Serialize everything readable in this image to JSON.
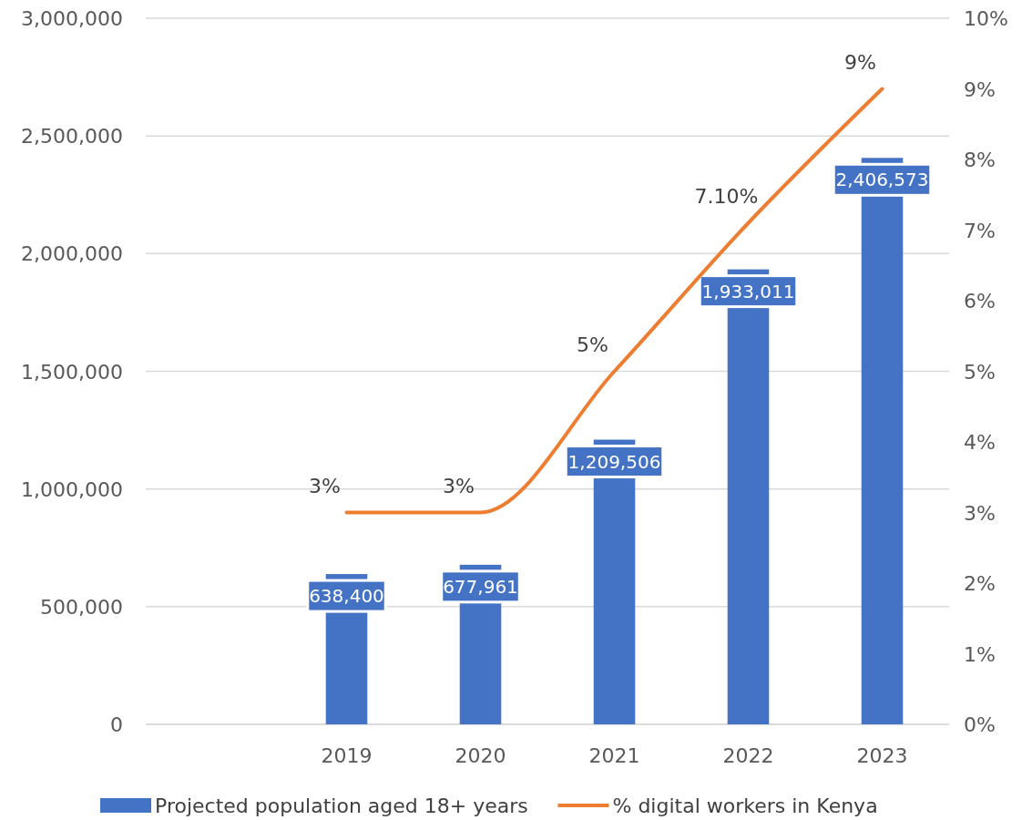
{
  "chart_data": {
    "type": "bar",
    "categories": [
      null,
      "2019",
      "2020",
      "2021",
      "2022",
      "2023"
    ],
    "series": [
      {
        "name": "Projected population aged 18+ years",
        "color": "#4472c4",
        "values": [
          null,
          638400,
          677961,
          1209506,
          1933011,
          2406573
        ],
        "value_labels": [
          null,
          "638,400",
          "677,961",
          "1,209,506",
          "1,933,011",
          "2,406,573"
        ]
      },
      {
        "name": "% digital workers in Kenya",
        "type": "line",
        "axis": "y2",
        "color": "#ed7d31",
        "values": [
          null,
          3,
          3,
          5,
          7.1,
          9
        ],
        "value_labels": [
          null,
          "3%",
          "3%",
          "5%",
          "7.10%",
          "9%"
        ]
      }
    ],
    "ylim": [
      0,
      3000000
    ],
    "yticks": [
      {
        "value": 0,
        "label": "0"
      },
      {
        "value": 500000,
        "label": "500,000"
      },
      {
        "value": 1000000,
        "label": "1,000,000"
      },
      {
        "value": 1500000,
        "label": "1,500,000"
      },
      {
        "value": 2000000,
        "label": "2,000,000"
      },
      {
        "value": 2500000,
        "label": "2,500,000"
      },
      {
        "value": 3000000,
        "label": "3,000,000"
      }
    ],
    "y2lim": [
      0,
      10
    ],
    "y2ticks": [
      {
        "value": 0,
        "label": "0%"
      },
      {
        "value": 1,
        "label": "1%"
      },
      {
        "value": 2,
        "label": "2%"
      },
      {
        "value": 3,
        "label": "3%"
      },
      {
        "value": 4,
        "label": "4%"
      },
      {
        "value": 5,
        "label": "5%"
      },
      {
        "value": 6,
        "label": "6%"
      },
      {
        "value": 7,
        "label": "7%"
      },
      {
        "value": 8,
        "label": "8%"
      },
      {
        "value": 9,
        "label": "9%"
      },
      {
        "value": 10,
        "label": "10%"
      }
    ],
    "grid": "y",
    "legend": "bottom",
    "marker": "none",
    "line_style": "solid"
  }
}
